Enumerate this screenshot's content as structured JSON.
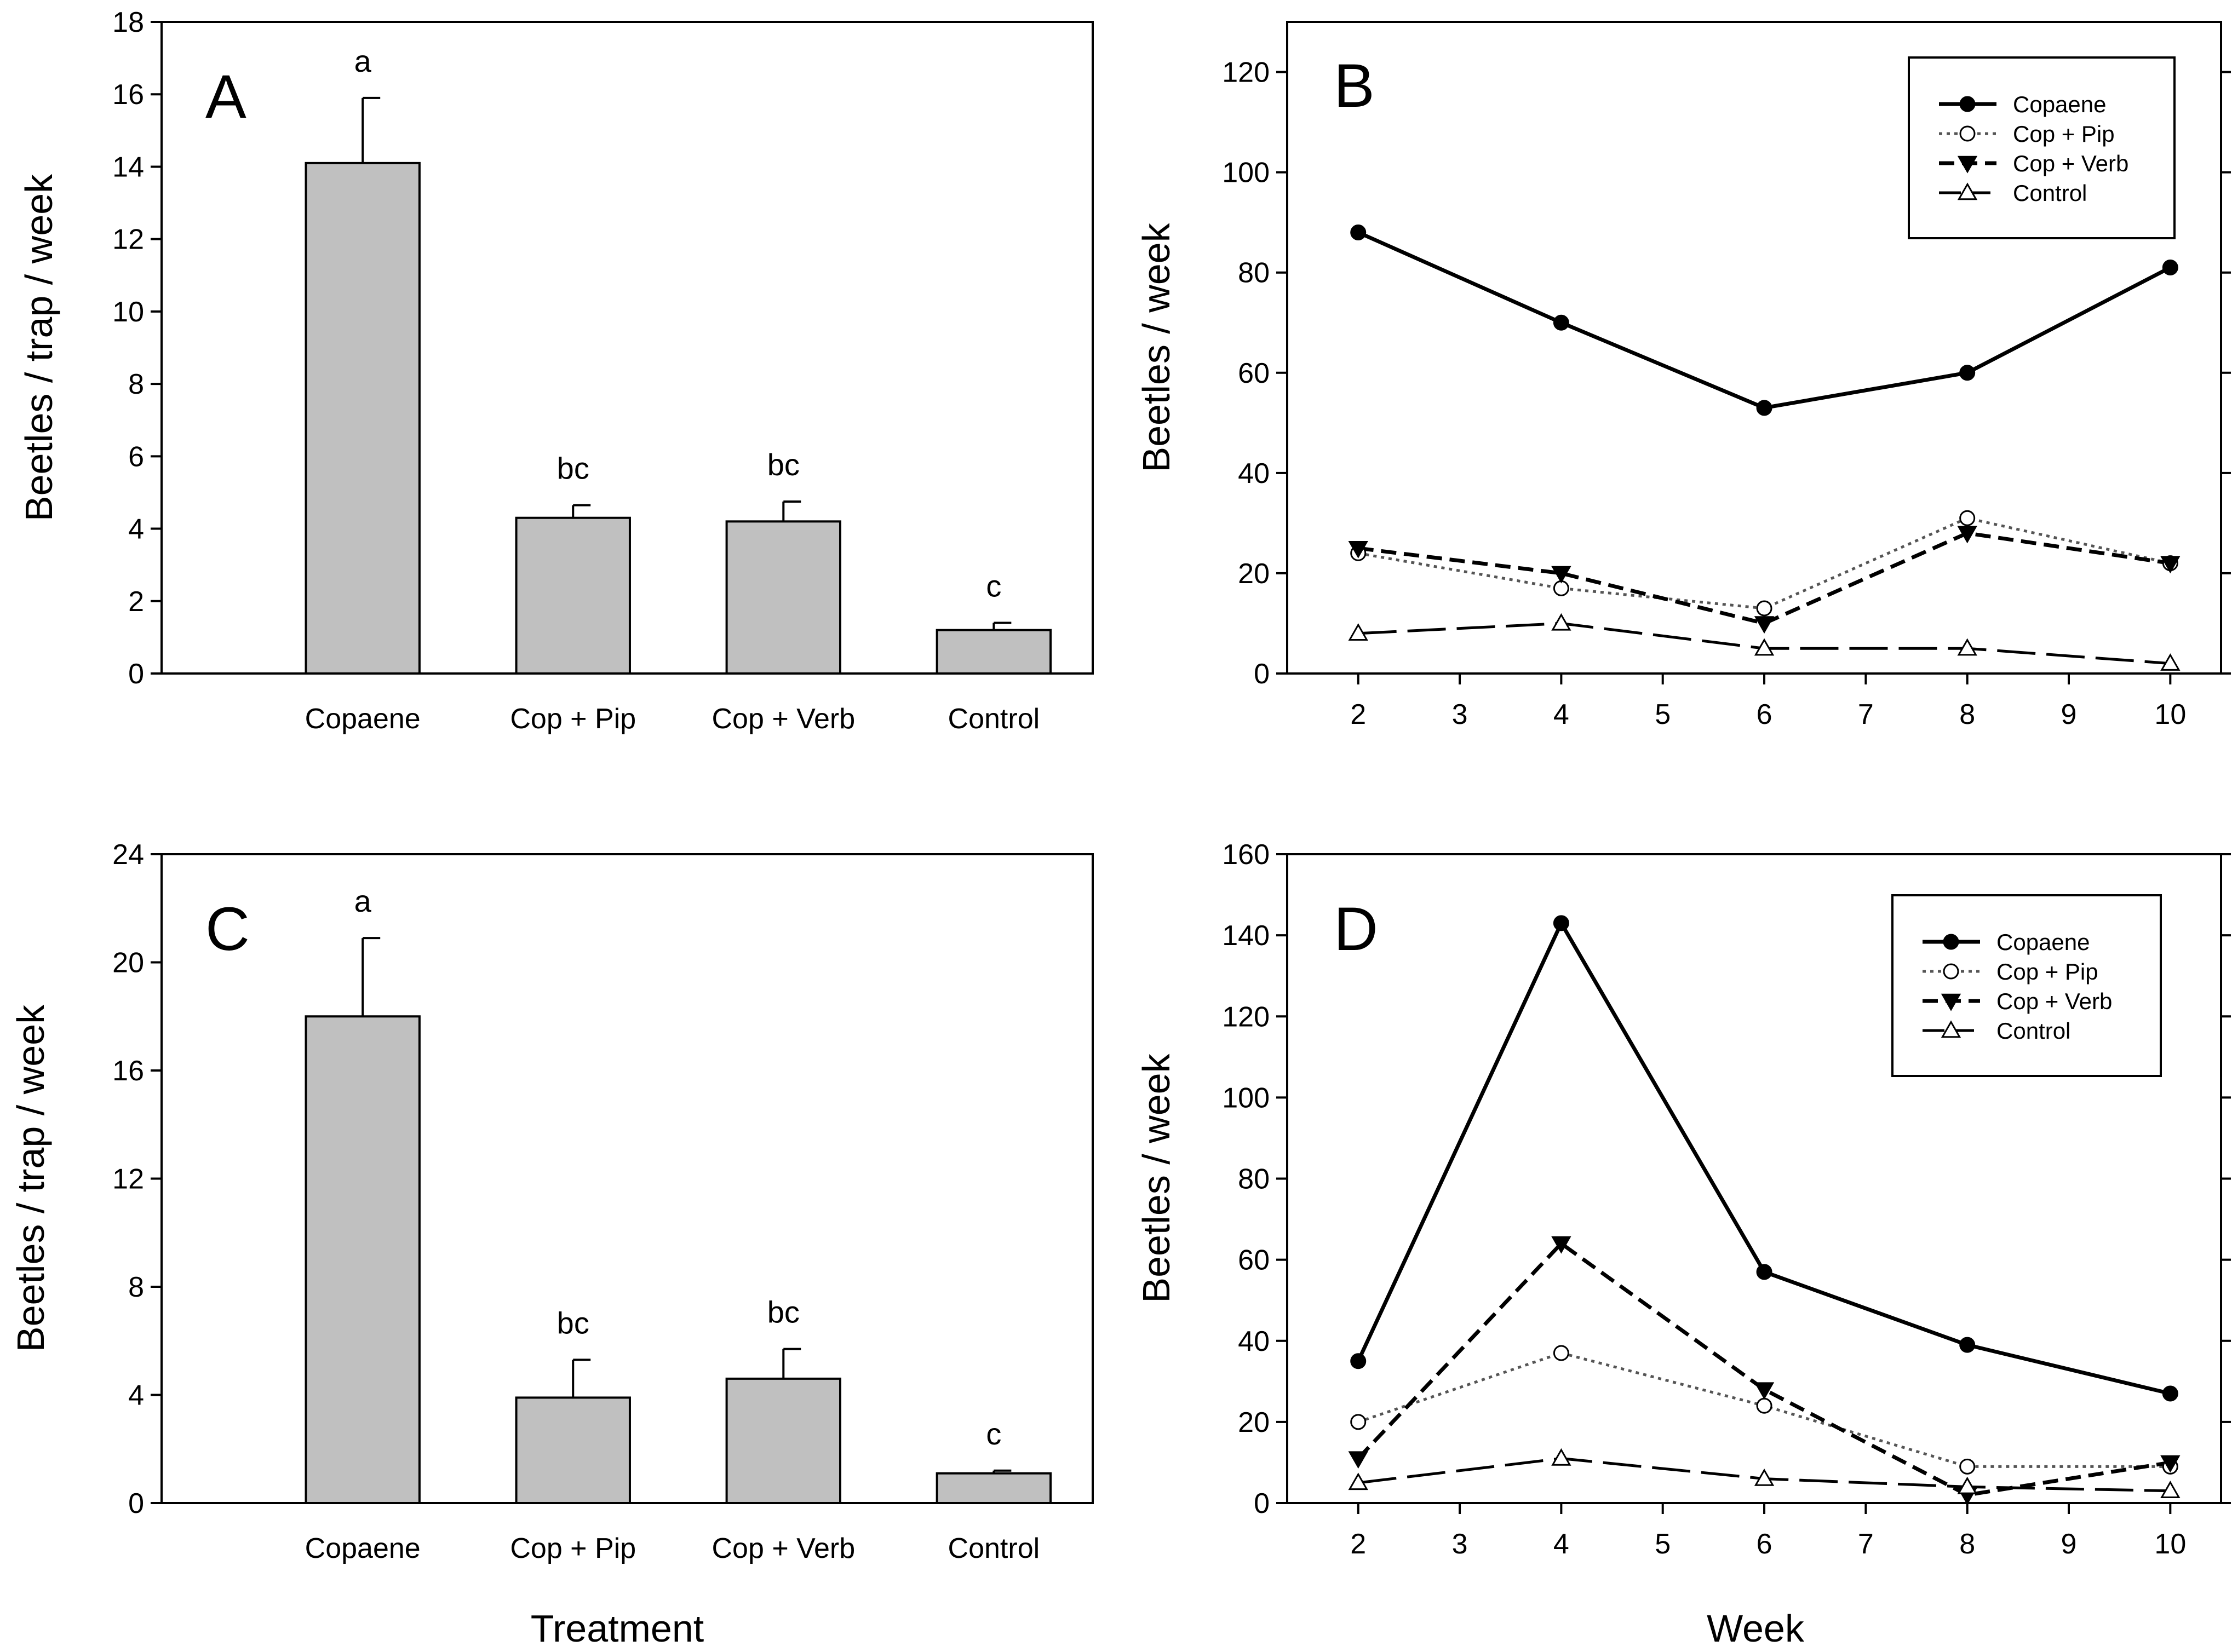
{
  "figure": {
    "x_label_left": "Treatment",
    "x_label_right": "Week"
  },
  "chart_data": [
    {
      "id": "A",
      "type": "bar",
      "panel_label": "A",
      "ylabel": "Beetles / trap / week",
      "xlabel": "",
      "categories": [
        "Copaene",
        "Cop + Pip",
        "Cop + Verb",
        "Control"
      ],
      "values": [
        14.1,
        4.3,
        4.2,
        1.2
      ],
      "errors": [
        1.8,
        0.35,
        0.55,
        0.2
      ],
      "significance": [
        "a",
        "bc",
        "bc",
        "c"
      ],
      "ylim": [
        0,
        18
      ],
      "yticks": [
        0,
        2,
        4,
        6,
        8,
        10,
        12,
        14,
        16,
        18
      ],
      "bar_color": "#c0c0c0",
      "grid": false
    },
    {
      "id": "B",
      "type": "line",
      "panel_label": "B",
      "ylabel": "Beetles / week",
      "xlabel": "",
      "x": [
        2,
        4,
        6,
        8,
        10
      ],
      "xlim": [
        1.3,
        10.5
      ],
      "xticks": [
        2,
        3,
        4,
        5,
        6,
        7,
        8,
        9,
        10
      ],
      "ylim": [
        0,
        130
      ],
      "yticks": [
        0,
        20,
        40,
        60,
        80,
        100,
        120
      ],
      "legend_position": "top-right",
      "grid": false,
      "series": [
        {
          "name": "Copaene",
          "values": [
            88,
            70,
            53,
            60,
            81
          ],
          "marker": "filled-circle",
          "line": "solid"
        },
        {
          "name": "Cop + Pip",
          "values": [
            24,
            17,
            13,
            31,
            22
          ],
          "marker": "open-circle",
          "line": "dotted"
        },
        {
          "name": "Cop + Verb",
          "values": [
            25,
            20,
            10,
            28,
            22
          ],
          "marker": "filled-triangle-down",
          "line": "dashed"
        },
        {
          "name": "Control",
          "values": [
            8,
            10,
            5,
            5,
            2
          ],
          "marker": "open-triangle-up",
          "line": "long-dash"
        }
      ]
    },
    {
      "id": "C",
      "type": "bar",
      "panel_label": "C",
      "ylabel": "Beetles / trap / week",
      "xlabel": "",
      "categories": [
        "Copaene",
        "Cop + Pip",
        "Cop + Verb",
        "Control"
      ],
      "values": [
        18.0,
        3.9,
        4.6,
        1.1
      ],
      "errors": [
        2.9,
        1.4,
        1.1,
        0.1
      ],
      "significance": [
        "a",
        "bc",
        "bc",
        "c"
      ],
      "ylim": [
        0,
        24
      ],
      "yticks": [
        0,
        4,
        8,
        12,
        16,
        20,
        24
      ],
      "bar_color": "#c0c0c0",
      "grid": false
    },
    {
      "id": "D",
      "type": "line",
      "panel_label": "D",
      "ylabel": "Beetles / week",
      "xlabel": "",
      "x": [
        2,
        4,
        6,
        8,
        10
      ],
      "xlim": [
        1.3,
        10.5
      ],
      "xticks": [
        2,
        3,
        4,
        5,
        6,
        7,
        8,
        9,
        10
      ],
      "ylim": [
        0,
        160
      ],
      "yticks": [
        0,
        20,
        40,
        60,
        80,
        100,
        120,
        140,
        160
      ],
      "legend_position": "top-right",
      "grid": false,
      "series": [
        {
          "name": "Copaene",
          "values": [
            35,
            143,
            57,
            39,
            27
          ],
          "marker": "filled-circle",
          "line": "solid"
        },
        {
          "name": "Cop + Pip",
          "values": [
            20,
            37,
            24,
            9,
            9
          ],
          "marker": "open-circle",
          "line": "dotted"
        },
        {
          "name": "Cop + Verb",
          "values": [
            11,
            64,
            28,
            2,
            10
          ],
          "marker": "filled-triangle-down",
          "line": "dashed"
        },
        {
          "name": "Control",
          "values": [
            5,
            11,
            6,
            4,
            3
          ],
          "marker": "open-triangle-up",
          "line": "long-dash"
        }
      ]
    }
  ]
}
